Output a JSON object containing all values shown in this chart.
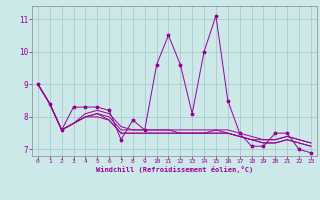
{
  "title": "",
  "xlabel": "Windchill (Refroidissement éolien,°C)",
  "ylabel": "",
  "background_color": "#cce8e8",
  "grid_color": "#aacccc",
  "line_color": "#990099",
  "marker": "*",
  "xlim": [
    -0.5,
    23.5
  ],
  "ylim": [
    6.8,
    11.4
  ],
  "yticks": [
    7,
    8,
    9,
    10,
    11
  ],
  "xticks": [
    0,
    1,
    2,
    3,
    4,
    5,
    6,
    7,
    8,
    9,
    10,
    11,
    12,
    13,
    14,
    15,
    16,
    17,
    18,
    19,
    20,
    21,
    22,
    23
  ],
  "series": [
    [
      9.0,
      8.4,
      7.6,
      8.3,
      8.3,
      8.3,
      8.2,
      7.3,
      7.9,
      7.6,
      9.6,
      10.5,
      9.6,
      8.1,
      10.0,
      11.1,
      8.5,
      7.5,
      7.1,
      7.1,
      7.5,
      7.5,
      7.0,
      6.9
    ],
    [
      9.0,
      8.4,
      7.6,
      7.8,
      8.0,
      8.1,
      8.0,
      7.6,
      7.6,
      7.6,
      7.6,
      7.6,
      7.6,
      7.6,
      7.6,
      7.6,
      7.6,
      7.5,
      7.4,
      7.3,
      7.3,
      7.4,
      7.3,
      7.2
    ],
    [
      9.0,
      8.4,
      7.6,
      7.8,
      8.0,
      8.1,
      7.9,
      7.5,
      7.5,
      7.5,
      7.5,
      7.5,
      7.5,
      7.5,
      7.5,
      7.5,
      7.5,
      7.4,
      7.3,
      7.2,
      7.2,
      7.3,
      7.2,
      7.1
    ],
    [
      9.0,
      8.4,
      7.6,
      7.8,
      8.1,
      8.2,
      8.1,
      7.7,
      7.6,
      7.6,
      7.6,
      7.6,
      7.5,
      7.5,
      7.5,
      7.6,
      7.5,
      7.4,
      7.3,
      7.3,
      7.3,
      7.4,
      7.3,
      7.2
    ],
    [
      9.0,
      8.4,
      7.6,
      7.8,
      8.0,
      8.0,
      7.9,
      7.5,
      7.5,
      7.5,
      7.5,
      7.5,
      7.5,
      7.5,
      7.5,
      7.5,
      7.5,
      7.4,
      7.3,
      7.2,
      7.2,
      7.3,
      7.2,
      7.1
    ]
  ]
}
